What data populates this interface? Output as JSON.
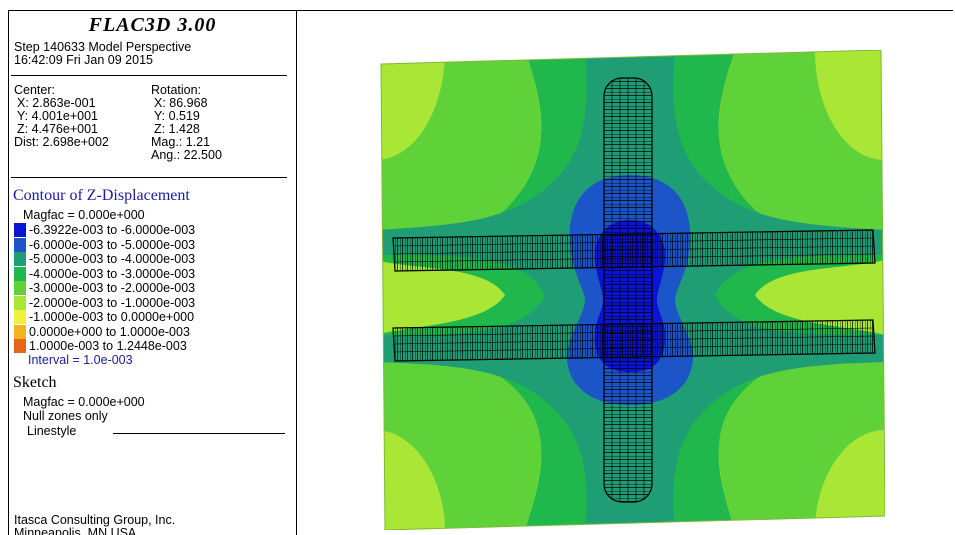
{
  "app": {
    "title": "FLAC3D 3.00",
    "step_line": "Step 140633  Model Perspective",
    "time_line": "16:42:09 Fri Jan 09 2015"
  },
  "view": {
    "center_label": "Center:",
    "center_x": "X: 2.863e-001",
    "center_y": "Y: 4.001e+001",
    "center_z": "Z: 4.476e+001",
    "dist": "Dist: 2.698e+002",
    "rotation_label": "Rotation:",
    "rot_x": "X:  86.968",
    "rot_y": "Y:   0.519",
    "rot_z": "Z:   1.428",
    "mag": "Mag.:      1.21",
    "ang": "Ang.:  22.500"
  },
  "contour": {
    "title": "Contour of Z-Displacement",
    "magfac": "Magfac = 0.000e+000",
    "interval": "Interval = 1.0e-003",
    "ranges": [
      {
        "label": "-6.3922e-003 to -6.0000e-003",
        "color": "#0a14d2"
      },
      {
        "label": "-6.0000e-003 to -5.0000e-003",
        "color": "#1c55c8"
      },
      {
        "label": "-5.0000e-003 to -4.0000e-003",
        "color": "#1f9d74"
      },
      {
        "label": "-4.0000e-003 to -3.0000e-003",
        "color": "#20b84c"
      },
      {
        "label": "-3.0000e-003 to -2.0000e-003",
        "color": "#5fd23a"
      },
      {
        "label": "-2.0000e-003 to -1.0000e-003",
        "color": "#a9e636"
      },
      {
        "label": "-1.0000e-003 to  0.0000e+000",
        "color": "#eef23c"
      },
      {
        "label": " 0.0000e+000 to  1.0000e-003",
        "color": "#f2b520"
      },
      {
        "label": " 1.0000e-003 to  1.2448e-003",
        "color": "#e8641a"
      }
    ]
  },
  "sketch": {
    "title": "Sketch",
    "magfac": "Magfac = 0.000e+000",
    "null_zones": "Null zones only",
    "linestyle": "Linestyle"
  },
  "footer": {
    "company": "Itasca Consulting Group, Inc.",
    "location": "Minneapolis, MN  USA"
  },
  "colors": {
    "field_outer": "#a9e636",
    "field_mid": "#5fd23a",
    "field_green": "#20b84c",
    "field_teal": "#1f9d74",
    "field_blue": "#1c55c8",
    "field_core": "#0a14d2",
    "mesh": "#000000"
  }
}
